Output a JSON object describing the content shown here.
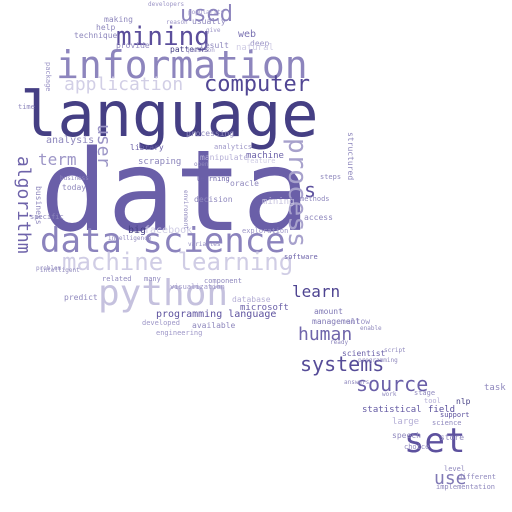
{
  "words": [
    {
      "text": "data",
      "color": "#6a5fa8"
    },
    {
      "text": "language",
      "color": "#453f84"
    },
    {
      "text": "information",
      "color": "#8d85bd"
    },
    {
      "text": "data science",
      "color": "#8b83bd"
    },
    {
      "text": "python",
      "color": "#c5c1de"
    },
    {
      "text": "machine learning",
      "color": "#d0cde5"
    },
    {
      "text": "set",
      "color": "#5d519e"
    },
    {
      "text": "process",
      "color": "#a7a1cc"
    },
    {
      "text": "mining",
      "color": "#5b4e9b"
    },
    {
      "text": "computer",
      "color": "#514694"
    },
    {
      "text": "application",
      "color": "#d2cfe6"
    },
    {
      "text": "source",
      "color": "#6a5fa8"
    },
    {
      "text": "systems",
      "color": "#564c98"
    },
    {
      "text": "human",
      "color": "#6f65ab"
    },
    {
      "text": "used",
      "color": "#8c84bd"
    },
    {
      "text": "learn",
      "color": "#4e4491"
    },
    {
      "text": "user",
      "color": "#9b95c6"
    },
    {
      "text": "algorithm",
      "color": "#6e63aa"
    },
    {
      "text": "term",
      "color": "#9d96c7"
    },
    {
      "text": "use",
      "color": "#8079b5"
    },
    {
      "text": "s",
      "color": "#5d519e"
    },
    {
      "text": "programming language",
      "color": "#5e539f"
    },
    {
      "text": "analysis",
      "color": "#8f88bd"
    },
    {
      "text": "web",
      "color": "#7a72b2"
    },
    {
      "text": "mining",
      "color": "#c9c5e0"
    },
    {
      "text": "statistical",
      "color": "#655ba4"
    },
    {
      "text": "field",
      "color": "#5a4f9c"
    },
    {
      "text": "task",
      "color": "#8f88bd"
    },
    {
      "text": "scraping",
      "color": "#8d86bc"
    },
    {
      "text": "library",
      "color": "#6c62a9"
    },
    {
      "text": "machine",
      "color": "#6c62a9"
    },
    {
      "text": "management",
      "color": "#8079b5"
    },
    {
      "text": "scientist",
      "color": "#6c62a9"
    },
    {
      "text": "microsoft",
      "color": "#6c62a9"
    },
    {
      "text": "available",
      "color": "#8f88bd"
    },
    {
      "text": "developed",
      "color": "#9d96c7"
    },
    {
      "text": "allow",
      "color": "#9b95c6"
    },
    {
      "text": "amount",
      "color": "#8079b5"
    },
    {
      "text": "help",
      "color": "#8f88bd"
    },
    {
      "text": "making",
      "color": "#8f88bd"
    },
    {
      "text": "provide",
      "color": "#8f88bd"
    },
    {
      "text": "patterns",
      "color": "#453f84"
    },
    {
      "text": "result",
      "color": "#8f88bd"
    },
    {
      "text": "technique",
      "color": "#8f88bd"
    },
    {
      "text": "business",
      "color": "#8f88bd"
    },
    {
      "text": "today",
      "color": "#8f88bd"
    },
    {
      "text": "processing",
      "color": "#8f88bd"
    },
    {
      "text": "analytics",
      "color": "#9d96c7"
    },
    {
      "text": "manipulate",
      "color": "#b5afd6"
    },
    {
      "text": "decision",
      "color": "#8f88bd"
    },
    {
      "text": "oracle",
      "color": "#8f88bd"
    },
    {
      "text": "learning",
      "color": "#6c62a9"
    },
    {
      "text": "big",
      "color": "#453f84"
    },
    {
      "text": "facebook",
      "color": "#d0cde5"
    },
    {
      "text": "predict",
      "color": "#8f88bd"
    },
    {
      "text": "many",
      "color": "#8f88bd"
    },
    {
      "text": "visualization",
      "color": "#9d96c7"
    },
    {
      "text": "engineering",
      "color": "#9d96c7"
    },
    {
      "text": "database",
      "color": "#b5afd6"
    },
    {
      "text": "nlp",
      "color": "#453f84"
    },
    {
      "text": "store",
      "color": "#8f88bd"
    },
    {
      "text": "level",
      "color": "#8f88bd"
    },
    {
      "text": "different",
      "color": "#8f88bd"
    },
    {
      "text": "implementation",
      "color": "#8f88bd"
    },
    {
      "text": "speech",
      "color": "#8f88bd"
    },
    {
      "text": "choice",
      "color": "#8f88bd"
    },
    {
      "text": "large",
      "color": "#b5afd6"
    },
    {
      "text": "stage",
      "color": "#8f88bd"
    },
    {
      "text": "science",
      "color": "#8f88bd"
    },
    {
      "text": "support",
      "color": "#5a4f9c"
    },
    {
      "text": "tool",
      "color": "#b5afd6"
    },
    {
      "text": "deep",
      "color": "#9d96c7"
    },
    {
      "text": "usually",
      "color": "#8f88bd"
    },
    {
      "text": "natural",
      "color": "#d0cde5"
    },
    {
      "text": "package",
      "color": "#9d96c7"
    },
    {
      "text": "access",
      "color": "#8f88bd"
    },
    {
      "text": "structured",
      "color": "#8f88bd"
    },
    {
      "text": "methods",
      "color": "#8f88bd"
    },
    {
      "text": "steps",
      "color": "#8f88bd"
    },
    {
      "text": "software",
      "color": "#6c62a9"
    },
    {
      "text": "component",
      "color": "#8f88bd"
    },
    {
      "text": "related",
      "color": "#8f88bd"
    },
    {
      "text": "specific",
      "color": "#8f88bd"
    },
    {
      "text": "time",
      "color": "#8f88bd"
    },
    {
      "text": "intelligent",
      "color": "#8f88bd"
    },
    {
      "text": "exploration",
      "color": "#9d96c7"
    },
    {
      "text": "environment",
      "color": "#8f88bd"
    },
    {
      "text": "popularity",
      "color": "#9d96c7"
    },
    {
      "text": "reason",
      "color": "#9d96c7"
    },
    {
      "text": "developers",
      "color": "#9d96c7"
    },
    {
      "text": "give",
      "color": "#9d96c7"
    },
    {
      "text": "question",
      "color": "#9d96c7"
    },
    {
      "text": "programming",
      "color": "#8f88bd"
    },
    {
      "text": "ready",
      "color": "#8f88bd"
    },
    {
      "text": "enable",
      "color": "#8f88bd"
    },
    {
      "text": "script",
      "color": "#8f88bd"
    },
    {
      "text": "work",
      "color": "#8f88bd"
    },
    {
      "text": "answers",
      "color": "#8f88bd"
    },
    {
      "text": "feature",
      "color": "#d0cde5"
    },
    {
      "text": "open",
      "color": "#8f88bd"
    },
    {
      "text": "business",
      "color": "#8f88bd"
    },
    {
      "text": "problem",
      "color": "#8f88bd"
    },
    {
      "text": "variables",
      "color": "#8f88bd"
    },
    {
      "text": "intelligence",
      "color": "#8f88bd"
    }
  ]
}
